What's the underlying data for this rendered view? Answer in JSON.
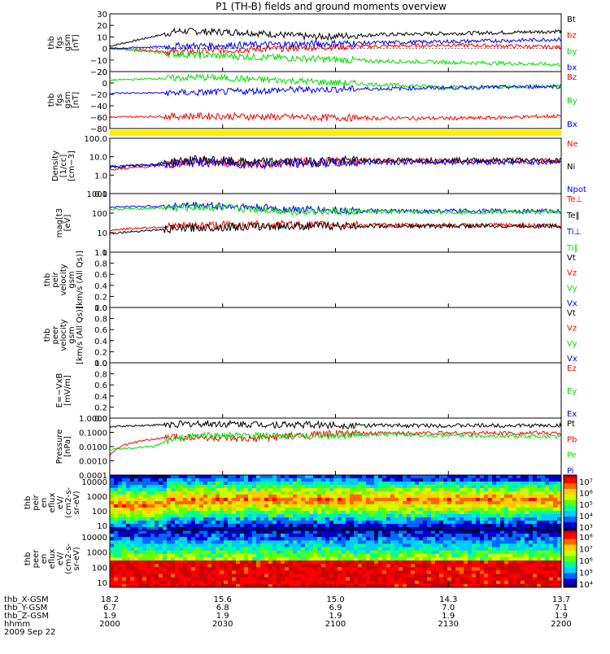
{
  "title": "P1 (TH-B) fields and ground moments overview",
  "colors": {
    "black": "#000000",
    "red": "#ff0000",
    "green": "#00dd00",
    "blue": "#0000ff",
    "yellow": "#ffee00"
  },
  "chart_data": {
    "type": "line",
    "x_ticks": [
      "2000",
      "2030",
      "2100",
      "2130",
      "2200"
    ],
    "x_range": [
      "2000",
      "2200"
    ],
    "date": "2009 Sep 22",
    "panels": [
      {
        "id": "fgs_gsm",
        "ylabel": [
          "thb",
          "fgs",
          "gsm",
          "[nT]"
        ],
        "ylim": [
          -20,
          30
        ],
        "log": false,
        "yticks": [
          "30",
          "20",
          "10",
          "0",
          "−10",
          "−20"
        ],
        "series": [
          {
            "name": "Bt",
            "color": "black",
            "points": [
              [
                0,
                2
              ],
              [
                0.15,
                15
              ],
              [
                0.3,
                14
              ],
              [
                0.45,
                10
              ],
              [
                0.6,
                12
              ],
              [
                0.75,
                13
              ],
              [
                0.9,
                14
              ],
              [
                1,
                15
              ]
            ]
          },
          {
            "name": "bz",
            "color": "red",
            "points": [
              [
                0,
                0
              ],
              [
                0.15,
                -3
              ],
              [
                0.3,
                -1
              ],
              [
                0.45,
                1
              ],
              [
                0.6,
                2
              ],
              [
                0.75,
                3
              ],
              [
                0.9,
                2
              ],
              [
                1,
                1
              ]
            ]
          },
          {
            "name": "by",
            "color": "green",
            "points": [
              [
                0,
                0
              ],
              [
                0.15,
                -5
              ],
              [
                0.3,
                -7
              ],
              [
                0.45,
                -9
              ],
              [
                0.6,
                -11
              ],
              [
                0.75,
                -12
              ],
              [
                0.9,
                -13
              ],
              [
                1,
                -14
              ]
            ]
          },
          {
            "name": "bx",
            "color": "blue",
            "points": [
              [
                0,
                0
              ],
              [
                0.15,
                2
              ],
              [
                0.3,
                3
              ],
              [
                0.45,
                4
              ],
              [
                0.6,
                5
              ],
              [
                0.75,
                6
              ],
              [
                0.9,
                7
              ],
              [
                1,
                8
              ]
            ]
          }
        ]
      },
      {
        "id": "fgs_sm",
        "ylabel": [
          "thb",
          "fgs",
          "gsm",
          "[nT]"
        ],
        "ylim": [
          -80,
          20
        ],
        "log": false,
        "yticks": [
          "20",
          "0",
          "−20",
          "−40",
          "−60",
          "−80"
        ],
        "series": [
          {
            "name": "Bz",
            "color": "red",
            "points": [
              [
                0,
                -60
              ],
              [
                0.2,
                -58
              ],
              [
                0.4,
                -60
              ],
              [
                0.6,
                -62
              ],
              [
                0.8,
                -62
              ],
              [
                1,
                -58
              ]
            ]
          },
          {
            "name": "By",
            "color": "green",
            "points": [
              [
                0,
                5
              ],
              [
                0.2,
                10
              ],
              [
                0.4,
                4
              ],
              [
                0.6,
                -3
              ],
              [
                0.8,
                -8
              ],
              [
                1,
                -5
              ]
            ]
          },
          {
            "name": "Bx",
            "color": "blue",
            "points": [
              [
                0,
                -18
              ],
              [
                0.2,
                -17
              ],
              [
                0.4,
                -12
              ],
              [
                0.6,
                -10
              ],
              [
                0.8,
                -8
              ],
              [
                1,
                -6
              ]
            ]
          }
        ]
      },
      {
        "id": "density",
        "ylabel": [
          "Density",
          "[1/cc]",
          "[cm−3]"
        ],
        "ylim": [
          0.1,
          100
        ],
        "log": true,
        "yticks": [
          "100.0",
          "10.0",
          "1.0",
          "0.1"
        ],
        "series": [
          {
            "name": "Ne",
            "color": "red",
            "points": [
              [
                0,
                2
              ],
              [
                0.1,
                3
              ],
              [
                0.2,
                6
              ],
              [
                0.3,
                4
              ],
              [
                0.45,
                5
              ],
              [
                0.6,
                6
              ],
              [
                0.8,
                6
              ],
              [
                1,
                6
              ]
            ]
          },
          {
            "name": "Ni",
            "color": "black",
            "points": [
              [
                0,
                2.5
              ],
              [
                0.1,
                4
              ],
              [
                0.2,
                7
              ],
              [
                0.3,
                5
              ],
              [
                0.45,
                5.5
              ],
              [
                0.6,
                6.5
              ],
              [
                0.8,
                6.5
              ],
              [
                1,
                6.5
              ]
            ]
          },
          {
            "name": "Npot",
            "color": "blue",
            "points": [
              [
                0,
                3
              ],
              [
                0.1,
                3.5
              ],
              [
                0.2,
                5
              ],
              [
                0.3,
                4
              ],
              [
                0.45,
                4.5
              ],
              [
                0.6,
                5
              ],
              [
                0.8,
                5
              ],
              [
                1,
                5
              ]
            ]
          }
        ]
      },
      {
        "id": "temperature",
        "ylabel": [
          "mag[t3",
          "[eV]"
        ],
        "ylim": [
          1,
          5000
        ],
        "log": true,
        "yticks": [
          "1000",
          "100",
          "10",
          "1"
        ],
        "series": [
          {
            "name": "Te⊥",
            "color": "red",
            "points": [
              [
                0,
                25
              ],
              [
                0.2,
                50
              ],
              [
                0.4,
                55
              ],
              [
                0.6,
                50
              ],
              [
                0.8,
                50
              ],
              [
                1,
                50
              ]
            ]
          },
          {
            "name": "Te‖",
            "color": "black",
            "points": [
              [
                0,
                15
              ],
              [
                0.2,
                35
              ],
              [
                0.4,
                45
              ],
              [
                0.6,
                45
              ],
              [
                0.8,
                45
              ],
              [
                1,
                45
              ]
            ]
          },
          {
            "name": "Ti⊥",
            "color": "blue",
            "points": [
              [
                0,
                700
              ],
              [
                0.2,
                900
              ],
              [
                0.4,
                500
              ],
              [
                0.6,
                380
              ],
              [
                0.8,
                400
              ],
              [
                1,
                400
              ]
            ]
          },
          {
            "name": "Ti‖",
            "color": "green",
            "points": [
              [
                0,
                500
              ],
              [
                0.2,
                700
              ],
              [
                0.4,
                400
              ],
              [
                0.6,
                350
              ],
              [
                0.8,
                350
              ],
              [
                1,
                350
              ]
            ]
          }
        ]
      },
      {
        "id": "peir_velocity",
        "ylabel": [
          "thb",
          "peir",
          "velocity",
          "gsm",
          "[km/s (All Qs)]"
        ],
        "ylim": [
          0,
          1
        ],
        "log": false,
        "yticks": [
          "1.0",
          "0.8",
          "0.6",
          "0.4",
          "0.2",
          "0.0"
        ],
        "series": [
          {
            "name": "Vt",
            "color": "black",
            "points": []
          },
          {
            "name": "Vz",
            "color": "red",
            "points": []
          },
          {
            "name": "Vy",
            "color": "green",
            "points": []
          },
          {
            "name": "Vx",
            "color": "blue",
            "points": []
          }
        ]
      },
      {
        "id": "peer_velocity",
        "ylabel": [
          "thb",
          "peer",
          "velocity",
          "gsm",
          "[km/s (All Qs)]"
        ],
        "ylim": [
          0,
          1
        ],
        "log": false,
        "yticks": [
          "1.0",
          "0.8",
          "0.6",
          "0.4",
          "0.2",
          "0.0"
        ],
        "series": [
          {
            "name": "Vt",
            "color": "black",
            "points": []
          },
          {
            "name": "Vz",
            "color": "red",
            "points": []
          },
          {
            "name": "Vy",
            "color": "green",
            "points": []
          },
          {
            "name": "Vx",
            "color": "blue",
            "points": []
          }
        ]
      },
      {
        "id": "efield",
        "ylabel": [
          "E=−VxB",
          "[mV/m]"
        ],
        "ylim": [
          0,
          1
        ],
        "log": false,
        "yticks": [
          "1.0",
          "0.8",
          "0.6",
          "0.4",
          "0.2",
          "0.0"
        ],
        "series": [
          {
            "name": "Ez",
            "color": "red",
            "points": []
          },
          {
            "name": "Ey",
            "color": "green",
            "points": []
          },
          {
            "name": "Ex",
            "color": "blue",
            "points": []
          }
        ]
      },
      {
        "id": "pressure",
        "ylabel": [
          "Pressure",
          "[nPa]"
        ],
        "ylim": [
          0.0001,
          1
        ],
        "log": true,
        "yticks": [
          "1.0000",
          "0.1000",
          "0.0100",
          "0.0010",
          "0.0001"
        ],
        "series": [
          {
            "name": "Pt",
            "color": "black",
            "points": [
              [
                0,
                0.25
              ],
              [
                0.2,
                0.4
              ],
              [
                0.4,
                0.35
              ],
              [
                0.6,
                0.3
              ],
              [
                0.8,
                0.3
              ],
              [
                1,
                0.3
              ]
            ]
          },
          {
            "name": "Pb",
            "color": "red",
            "points": [
              [
                0,
                0.002
              ],
              [
                0.15,
                0.05
              ],
              [
                0.3,
                0.03
              ],
              [
                0.5,
                0.08
              ],
              [
                0.7,
                0.09
              ],
              [
                1,
                0.09
              ]
            ]
          },
          {
            "name": "Pe",
            "color": "green",
            "points": [
              [
                0,
                0.006
              ],
              [
                0.1,
                0.01
              ],
              [
                0.2,
                0.06
              ],
              [
                0.4,
                0.05
              ],
              [
                0.6,
                0.07
              ],
              [
                0.8,
                0.06
              ],
              [
                1,
                0.05
              ]
            ]
          },
          {
            "name": "Pi",
            "color": "blue",
            "points": []
          }
        ]
      }
    ],
    "spectrograms": [
      {
        "id": "peir_eflux",
        "ylabel": [
          "thb",
          "peir",
          "en",
          "eflux",
          "eV/",
          "(cm2-s-",
          "sr-eV)"
        ],
        "yticks": [
          "10000",
          "1000",
          "100",
          "10"
        ],
        "colorbar_ticks": [
          "10⁷",
          "10⁶",
          "10⁵",
          "10⁴",
          "10³"
        ]
      },
      {
        "id": "peer_eflux",
        "ylabel": [
          "thb",
          "peer",
          "en",
          "eflux",
          "eV/",
          "(cm2-s-",
          "sr-eV)"
        ],
        "yticks": [
          "10000",
          "1000",
          "100",
          "10"
        ],
        "colorbar_ticks": [
          "10⁸",
          "10⁷",
          "10⁶",
          "10⁵",
          "10⁴"
        ]
      }
    ],
    "ephemeris": {
      "labels": [
        "thb_X-GSM",
        "thb_Y-GSM",
        "thb_Z-GSM",
        "hhmm",
        "2009 Sep 22"
      ],
      "columns": [
        [
          "18.2",
          "6.7",
          "1.9",
          "2000"
        ],
        [
          "15.6",
          "6.8",
          "1.9",
          "2030"
        ],
        [
          "15.0",
          "6.9",
          "1.9",
          "2100"
        ],
        [
          "14.3",
          "7.0",
          "1.9",
          "2130"
        ],
        [
          "13.7",
          "7.1",
          "1.9",
          "2200"
        ]
      ]
    }
  }
}
